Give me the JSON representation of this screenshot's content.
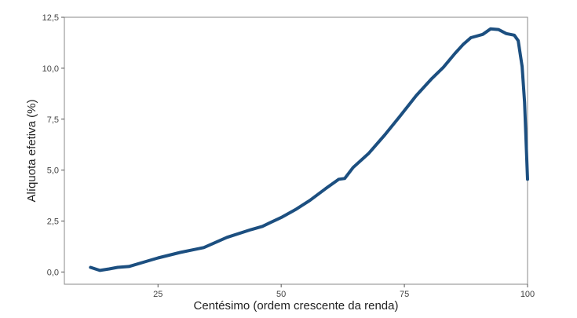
{
  "chart_data": {
    "type": "line",
    "title": "",
    "xlabel": "Centésimo (ordem crescente da renda)",
    "ylabel": "Alíquota efetiva (%)",
    "xlim": [
      6,
      100
    ],
    "ylim": [
      -0.6,
      12.5
    ],
    "x_ticks": [
      25,
      50,
      75,
      100
    ],
    "x_tick_labels": [
      "25",
      "50",
      "75",
      "100"
    ],
    "y_ticks": [
      0,
      2.5,
      5,
      7.5,
      10,
      12.5
    ],
    "y_tick_labels": [
      "0,0",
      "2,5",
      "5,0",
      "7,5",
      "10,0",
      "12,5"
    ],
    "grid": false,
    "line_color": "#1c4f80",
    "series": [
      {
        "x": [
          11.3,
          13.2,
          15.1,
          16.8,
          19.1,
          22.3,
          25,
          29.5,
          34.3,
          39,
          43.9,
          46.2,
          47.8,
          50.2,
          53.1,
          55.8,
          59,
          61.7,
          62.9,
          64.6,
          67.8,
          71,
          74.1,
          77.4,
          80.6,
          82.9,
          85.3,
          86.9,
          88.5,
          90.9,
          92.5,
          94.1,
          95.7,
          97.3,
          98.1,
          98.9,
          99.4,
          100
        ],
        "y": [
          0.23,
          0.08,
          0.15,
          0.23,
          0.27,
          0.5,
          0.69,
          0.96,
          1.2,
          1.7,
          2.08,
          2.24,
          2.43,
          2.7,
          3.09,
          3.51,
          4.09,
          4.55,
          4.59,
          5.13,
          5.83,
          6.72,
          7.64,
          8.65,
          9.5,
          10.04,
          10.73,
          11.16,
          11.5,
          11.66,
          11.93,
          11.9,
          11.7,
          11.62,
          11.35,
          10.08,
          8.34,
          4.55
        ]
      }
    ]
  }
}
